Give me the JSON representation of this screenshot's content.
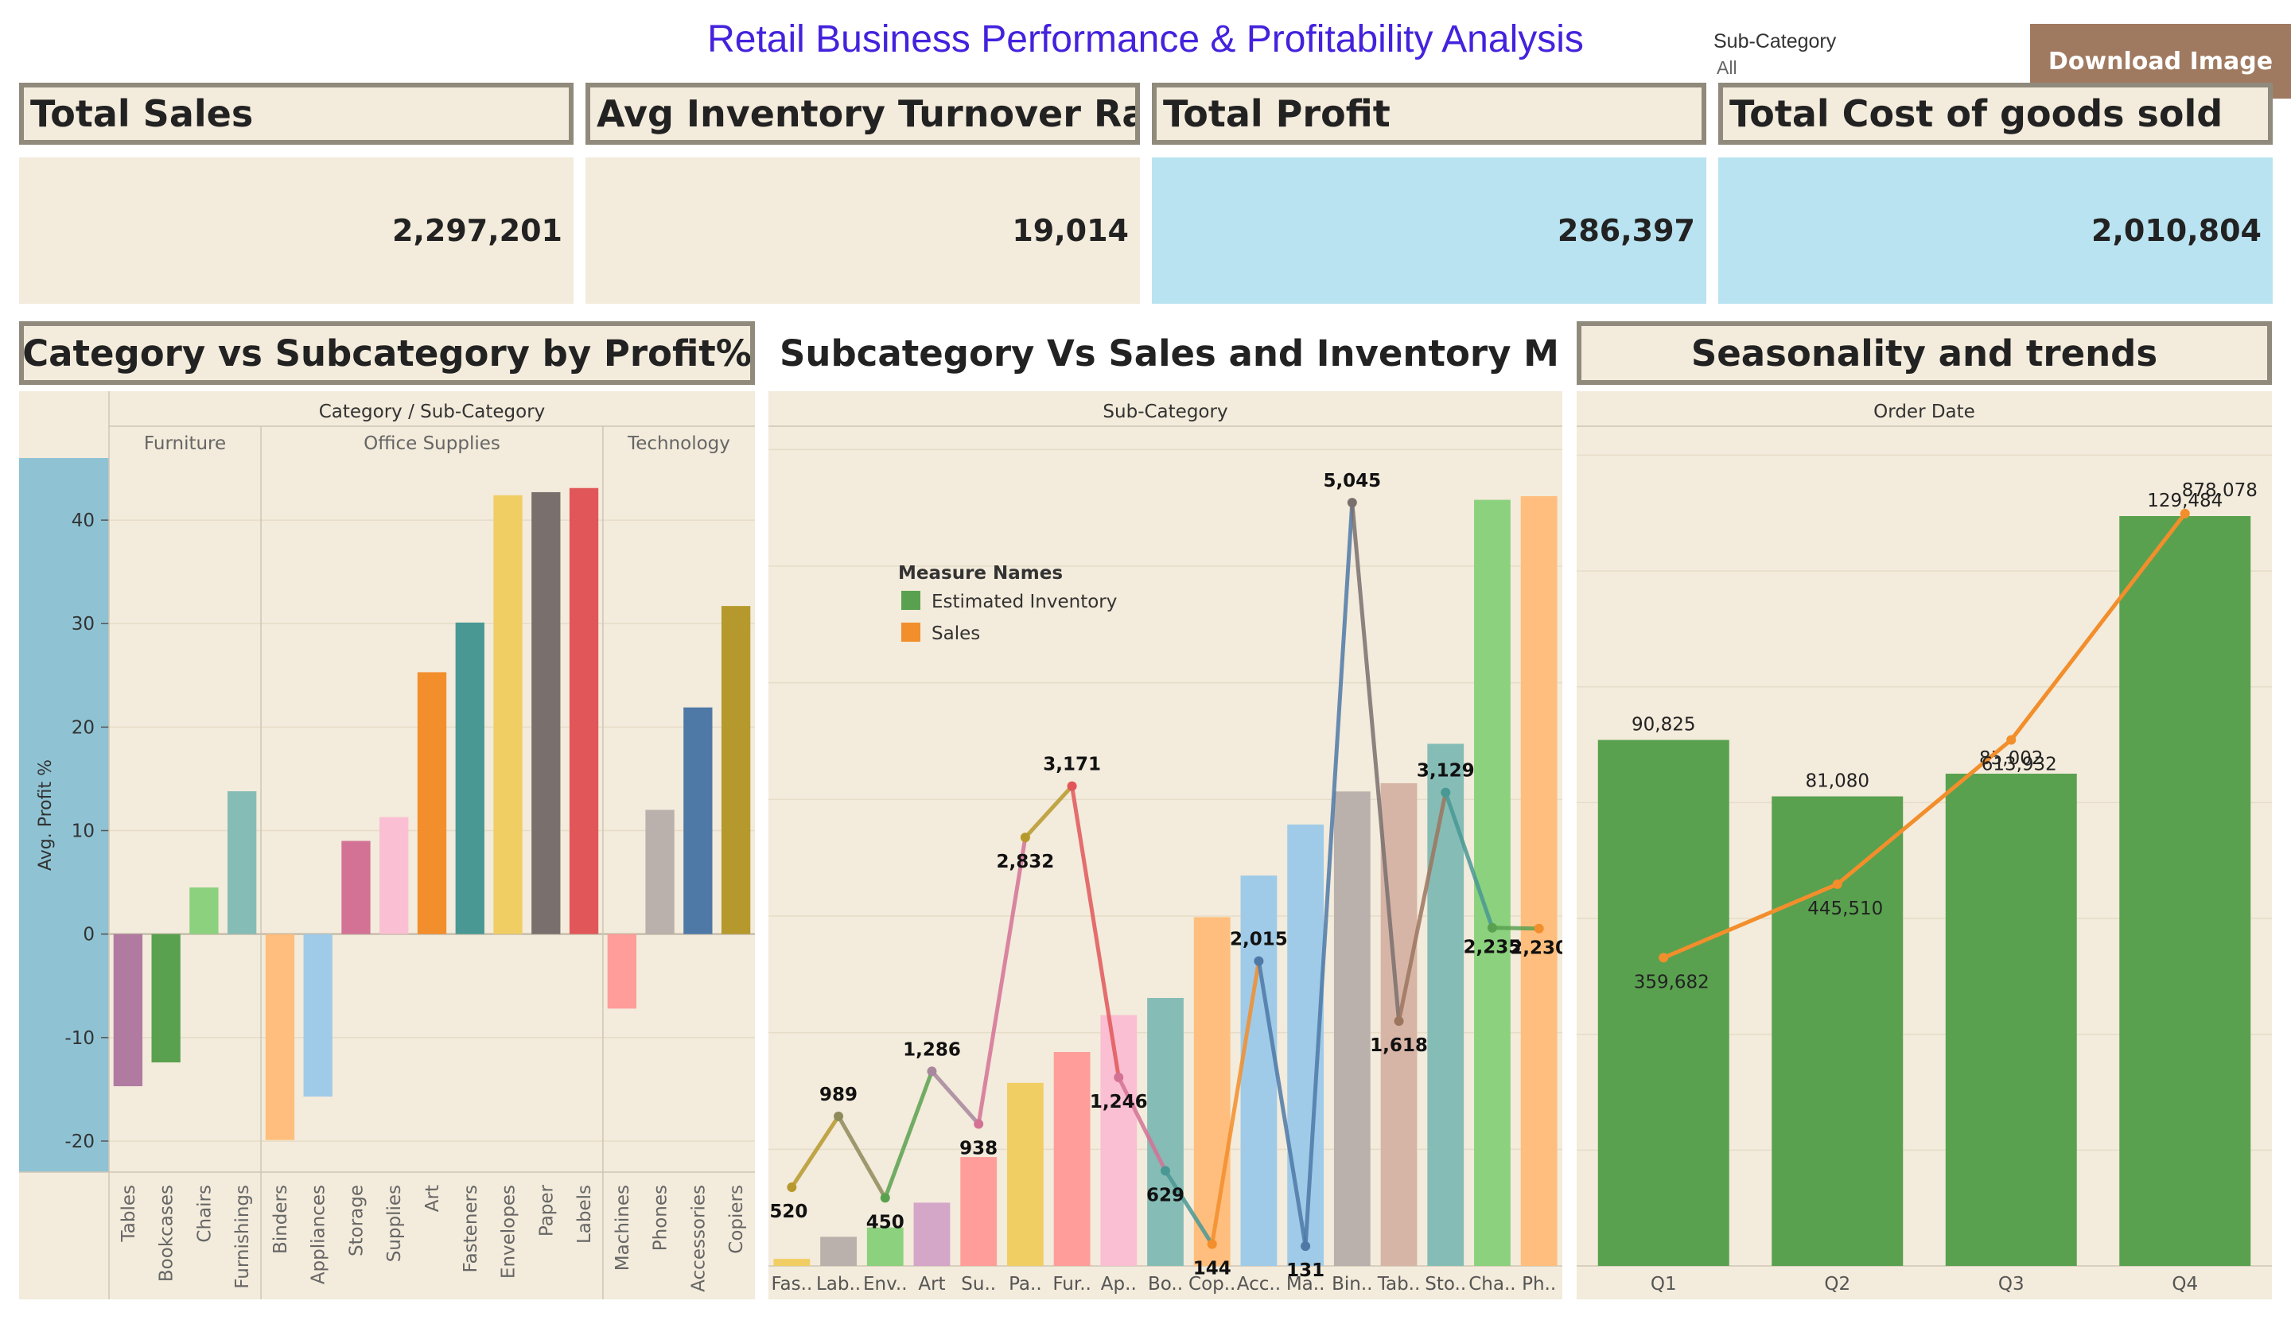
{
  "header": {
    "title": "Retail Business Performance & Profitability Analysis",
    "filter_label": "Sub-Category",
    "filter_value": "All",
    "download_label": "Download Image"
  },
  "colors": {
    "panel_bg": "#f3ebdb",
    "border": "#908a7c",
    "kpi_highlight": "#b9e3f0",
    "axis_band": "#8fc3d4",
    "title_blue": "#4422dd",
    "download_bg": "#a07a60",
    "green": "#5a9e4b",
    "orange": "#f0922f"
  },
  "kpis": [
    {
      "label": "Total Sales",
      "value": "2,297,201"
    },
    {
      "label": "Avg Inventory Turnover Ratio",
      "value": "19,014"
    },
    {
      "label": "Total Profit",
      "value": "286,397"
    },
    {
      "label": "Total Cost of goods sold",
      "value": "2,010,804"
    }
  ],
  "panels": {
    "profit": "Category vs Subcategory by Profit%",
    "sales_inventory": "Subcategory Vs Sales and Inventory Margin",
    "seasonality": "Seasonality and trends"
  },
  "chart_data": [
    {
      "type": "bar",
      "header": "Category / Sub-Category",
      "ylabel": "Avg. Profit %",
      "ylim": [
        -23,
        46
      ],
      "yticks": [
        -20,
        -10,
        0,
        10,
        20,
        30,
        40
      ],
      "groups": [
        {
          "name": "Furniture",
          "categories": [
            "Tables",
            "Bookcases",
            "Chairs",
            "Furnishings"
          ],
          "values": [
            -14.7,
            -12.4,
            4.5,
            13.8
          ],
          "colors": [
            "#b07aa1",
            "#59a14f",
            "#8cd17d",
            "#86bcb6"
          ]
        },
        {
          "name": "Office Supplies",
          "categories": [
            "Binders",
            "Appliances",
            "Storage",
            "Supplies",
            "Art",
            "Fasteners",
            "Envelopes",
            "Paper",
            "Labels"
          ],
          "values": [
            -19.9,
            -15.7,
            9.0,
            11.3,
            25.3,
            30.1,
            42.4,
            42.7,
            43.1
          ],
          "colors": [
            "#ffbe7d",
            "#a0cbe8",
            "#d37295",
            "#fabfd2",
            "#f28e2b",
            "#499894",
            "#f1ce63",
            "#79706e",
            "#e15759"
          ]
        },
        {
          "name": "Technology",
          "categories": [
            "Machines",
            "Phones",
            "Accessories",
            "Copiers"
          ],
          "values": [
            -7.2,
            12.0,
            21.9,
            31.7
          ],
          "colors": [
            "#ff9d9a",
            "#bab0ac",
            "#4e79a7",
            "#b6992d"
          ]
        }
      ]
    },
    {
      "type": "bar",
      "header": "Sub-Category",
      "legend_title": "Measure Names",
      "legend": [
        {
          "name": "Estimated Inventory",
          "color": "#59a14f"
        },
        {
          "name": "Sales",
          "color": "#f28e2b"
        }
      ],
      "categories": [
        "Fas..",
        "Lab..",
        "Env..",
        "Art",
        "Su..",
        "Pa..",
        "Fur..",
        "Ap..",
        "Bo..",
        "Cop..",
        "Acc..",
        "Ma..",
        "Bin..",
        "Tab..",
        "Sto..",
        "Cha..",
        "Ph.."
      ],
      "bar_values": [
        3024,
        12486,
        16476,
        27119,
        46674,
        78479,
        91705,
        107532,
        114880,
        149528,
        167380,
        189239,
        203413,
        206966,
        223844,
        328449,
        330007
      ],
      "bar_colors": [
        "#f1ce63",
        "#bab0ac",
        "#8cd17d",
        "#d4a6c8",
        "#ff9d9a",
        "#f1ce63",
        "#ff9d9a",
        "#fabfd2",
        "#86bcb6",
        "#ffbe7d",
        "#a0cbe8",
        "#a0cbe8",
        "#bab0ac",
        "#d7b5a6",
        "#86bcb6",
        "#8cd17d",
        "#ffbe7d"
      ],
      "line_values": [
        520,
        989,
        450,
        1286,
        938,
        2832,
        3171,
        1246,
        629,
        144,
        2015,
        131,
        5045,
        1618,
        3129,
        2235,
        2230
      ],
      "line_labels": [
        "520",
        "989",
        "450",
        "1,286",
        "938",
        "2,832",
        "3,171",
        "1,246",
        "629",
        "144",
        "2,015",
        "131",
        "5,045",
        "1,618",
        "3,129",
        "2,235",
        "2,230"
      ],
      "line_colors": [
        "#b6992d",
        "#8f8a5a",
        "#59a14f",
        "#a6879b",
        "#d37295",
        "#b6992d",
        "#e15759",
        "#d37295",
        "#499894",
        "#f28e2b",
        "#4e79a7",
        "#4e79a7",
        "#79706e",
        "#9c755f",
        "#499894",
        "#59a14f",
        "#f28e2b"
      ],
      "bar_ylim": [
        0,
        360000
      ],
      "line_ylim": [
        0,
        5550
      ]
    },
    {
      "type": "bar",
      "header": "Order Date",
      "categories": [
        "Q1",
        "Q2",
        "Q3",
        "Q4"
      ],
      "bar_values": [
        90825,
        81080,
        85002,
        129484
      ],
      "bar_labels": [
        "90,825",
        "81,080",
        "85,002",
        "129,484"
      ],
      "line_values": [
        359682,
        445510,
        613932,
        878078
      ],
      "line_labels": [
        "359,682",
        "445,510",
        "613,932",
        "878,078"
      ],
      "bar_ylim": [
        0,
        145000
      ],
      "line_ylim": [
        0,
        980000
      ],
      "bar_color": "#59a14f",
      "line_color": "#f28e2b"
    }
  ]
}
